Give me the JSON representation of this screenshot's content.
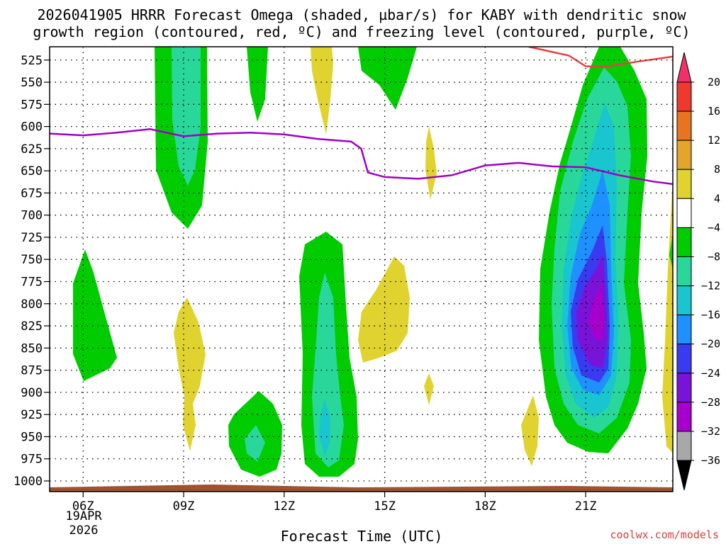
{
  "chart_data": {
    "type": "time-height contour",
    "title": [
      "2026041905 HRRR Forecast Omega (shaded, µbar/s) for KABY with dendritic snow",
      "growth region (contoured, red, ºC) and freezing level (contoured, purple, ºC)"
    ],
    "xlabel": "Forecast Time (UTC)",
    "date_line1": "19APR",
    "date_line2": "2026",
    "x_range_hours": [
      5,
      23.6
    ],
    "x_ticks": [
      {
        "hour": 6,
        "label": "06Z"
      },
      {
        "hour": 9,
        "label": "09Z"
      },
      {
        "hour": 12,
        "label": "12Z"
      },
      {
        "hour": 15,
        "label": "15Z"
      },
      {
        "hour": 18,
        "label": "18Z"
      },
      {
        "hour": 21,
        "label": "21Z"
      }
    ],
    "y_range_hpa": [
      1012,
      510
    ],
    "y_ticks": [
      525,
      550,
      575,
      600,
      625,
      650,
      675,
      700,
      725,
      750,
      775,
      800,
      825,
      850,
      875,
      900,
      925,
      950,
      975,
      1000
    ],
    "colorbar": {
      "labels": [
        "20",
        "16",
        "12",
        "8",
        "4",
        "-4",
        "-8",
        "-12",
        "-16",
        "-20",
        "-24",
        "-28",
        "-32",
        "-36"
      ],
      "colors": [
        "#f0306a",
        "#ee3a2e",
        "#e8741f",
        "#e3a52a",
        "#e0d330",
        "#ffffff",
        "#00cc00",
        "#29d79a",
        "#19c5cf",
        "#1e90ff",
        "#3a3af0",
        "#7a13d8",
        "#a800cc",
        "#a8a8a8",
        "#000000"
      ]
    },
    "freezing_level": {
      "color": "#a000c8",
      "points": [
        [
          5,
          608
        ],
        [
          6,
          610
        ],
        [
          7,
          607
        ],
        [
          8,
          603
        ],
        [
          9,
          611
        ],
        [
          10,
          608
        ],
        [
          11,
          607
        ],
        [
          12,
          609
        ],
        [
          13,
          614
        ],
        [
          14,
          617
        ],
        [
          14.3,
          625
        ],
        [
          14.5,
          652
        ],
        [
          15,
          657
        ],
        [
          16,
          659
        ],
        [
          17,
          655
        ],
        [
          18,
          644
        ],
        [
          19,
          641
        ],
        [
          20,
          645
        ],
        [
          21,
          646
        ],
        [
          22,
          655
        ],
        [
          23,
          662
        ],
        [
          23.6,
          665
        ]
      ]
    },
    "dgz_contour": {
      "color": "#e84040",
      "points": [
        [
          19.3,
          510
        ],
        [
          20.5,
          520
        ],
        [
          21,
          532
        ],
        [
          21.5,
          533
        ],
        [
          22.5,
          527
        ],
        [
          23.6,
          521
        ]
      ]
    },
    "omega_features": [
      {
        "type": "updraft",
        "center": [
          9,
          550
        ],
        "min": -12,
        "peak_hpa": 600
      },
      {
        "type": "updraft",
        "center": [
          6,
          780
        ],
        "min": -8
      },
      {
        "type": "updraft",
        "center": [
          13,
          850
        ],
        "min": -16
      },
      {
        "type": "updraft",
        "center": [
          11,
          940
        ],
        "min": -12
      },
      {
        "type": "updraft",
        "center": [
          21,
          780
        ],
        "min": -30
      },
      {
        "type": "downdraft",
        "center": [
          15,
          780
        ],
        "max": 5
      },
      {
        "type": "downdraft",
        "center": [
          9,
          820
        ],
        "max": 5
      },
      {
        "type": "downdraft",
        "center": [
          13.5,
          550
        ],
        "max": 5
      }
    ]
  },
  "credit": "coolwx.com/models"
}
